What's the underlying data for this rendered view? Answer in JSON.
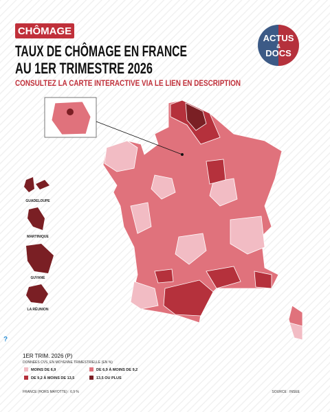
{
  "header": {
    "badge": "CHÔMAGE",
    "title_lines": [
      "TAUX DE CHÔMAGE EN FRANCE",
      "AU 1ER TRIMESTRE 2026"
    ],
    "subtitle": "CONSULTEZ LA CARTE INTERACTIVE VIA LE LIEN EN DESCRIPTION"
  },
  "logo": {
    "top": "ACTUS",
    "middle": "&",
    "bottom": "DOCS"
  },
  "map": {
    "overseas": [
      "GUADELOUPE",
      "MARTINIQUE",
      "GUYANE",
      "LA RÉUNION"
    ],
    "help": "?"
  },
  "legend": {
    "title": "1ER TRIM. 2026 (P)",
    "note": "DONNÉES CVS, EN MOYENNE TRIMESTRIELLE (EN %)",
    "items": [
      {
        "label": "MOINS DE 6,9",
        "color": "#f2bcc4"
      },
      {
        "label": "DE 6,9 À MOINS DE 9,2",
        "color": "#e0727c"
      },
      {
        "label": "DE 9,2 À MOINS DE 13,5",
        "color": "#b5313c"
      },
      {
        "label": "13,5 OU PLUS",
        "color": "#7a1f24"
      }
    ]
  },
  "footer": {
    "national": "FRANCE (HORS MAYOTTE) : 6,9 %",
    "source": "SOURCE : INSEE"
  }
}
